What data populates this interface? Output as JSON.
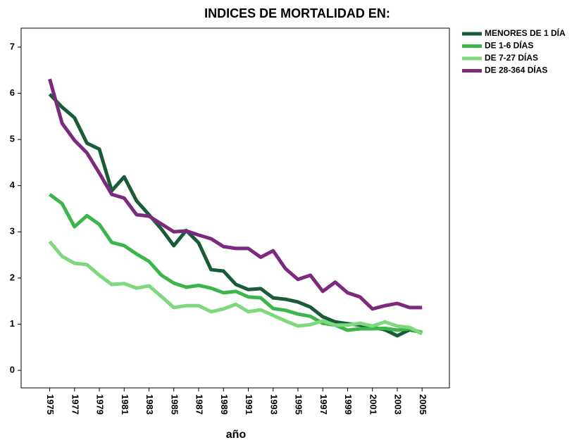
{
  "chart_data": {
    "type": "line",
    "title": "INDICES DE MORTALIDAD EN:",
    "x_label": "año",
    "x": [
      1975,
      1976,
      1977,
      1978,
      1979,
      1980,
      1981,
      1982,
      1983,
      1984,
      1985,
      1986,
      1987,
      1988,
      1989,
      1990,
      1991,
      1992,
      1993,
      1994,
      1995,
      1996,
      1997,
      1998,
      1999,
      2000,
      2001,
      2002,
      2003,
      2004,
      2005
    ],
    "series": [
      {
        "name": "MENORES DE 1 DÍA",
        "color": "#1a5c38",
        "values": [
          5.98,
          5.7,
          5.47,
          4.92,
          4.79,
          3.89,
          4.19,
          3.67,
          3.37,
          3.06,
          2.7,
          3.03,
          2.76,
          2.18,
          2.15,
          1.86,
          1.75,
          1.77,
          1.57,
          1.54,
          1.48,
          1.37,
          1.16,
          1.05,
          1.01,
          0.98,
          0.93,
          0.88,
          0.75,
          0.88,
          0.82
        ]
      },
      {
        "name": "DE 1-6 DÍAS",
        "color": "#3cb54a",
        "values": [
          3.81,
          3.61,
          3.11,
          3.35,
          3.16,
          2.77,
          2.7,
          2.52,
          2.36,
          2.06,
          1.89,
          1.8,
          1.84,
          1.78,
          1.68,
          1.71,
          1.59,
          1.57,
          1.34,
          1.3,
          1.22,
          1.17,
          1.02,
          0.98,
          0.87,
          0.9,
          0.9,
          0.91,
          0.87,
          0.9,
          0.82
        ]
      },
      {
        "name": "DE 7-27 DÍAS",
        "color": "#7ed87e",
        "values": [
          2.79,
          2.47,
          2.32,
          2.29,
          2.06,
          1.86,
          1.88,
          1.78,
          1.83,
          1.6,
          1.36,
          1.4,
          1.4,
          1.27,
          1.33,
          1.43,
          1.27,
          1.31,
          1.19,
          1.07,
          0.96,
          0.99,
          1.07,
          0.98,
          0.98,
          1.02,
          0.96,
          1.05,
          0.96,
          0.93,
          0.79
        ]
      },
      {
        "name": "DE 28-364 DÍAS",
        "color": "#7b2a7e",
        "values": [
          6.31,
          5.35,
          4.98,
          4.71,
          4.27,
          3.81,
          3.73,
          3.37,
          3.34,
          3.17,
          3.0,
          3.02,
          2.93,
          2.85,
          2.68,
          2.64,
          2.64,
          2.45,
          2.59,
          2.2,
          1.97,
          2.06,
          1.71,
          1.91,
          1.68,
          1.59,
          1.33,
          1.4,
          1.45,
          1.36,
          1.36
        ]
      }
    ],
    "xlim": [
      1972.7,
      2007.2
    ],
    "xticks": [
      1975,
      1977,
      1979,
      1981,
      1983,
      1985,
      1987,
      1989,
      1991,
      1993,
      1995,
      1997,
      1999,
      2001,
      2003,
      2005
    ],
    "ylim": [
      -0.38,
      7.41
    ],
    "yticks": [
      0,
      1,
      2,
      3,
      4,
      5,
      6,
      7
    ],
    "legend": "right"
  }
}
